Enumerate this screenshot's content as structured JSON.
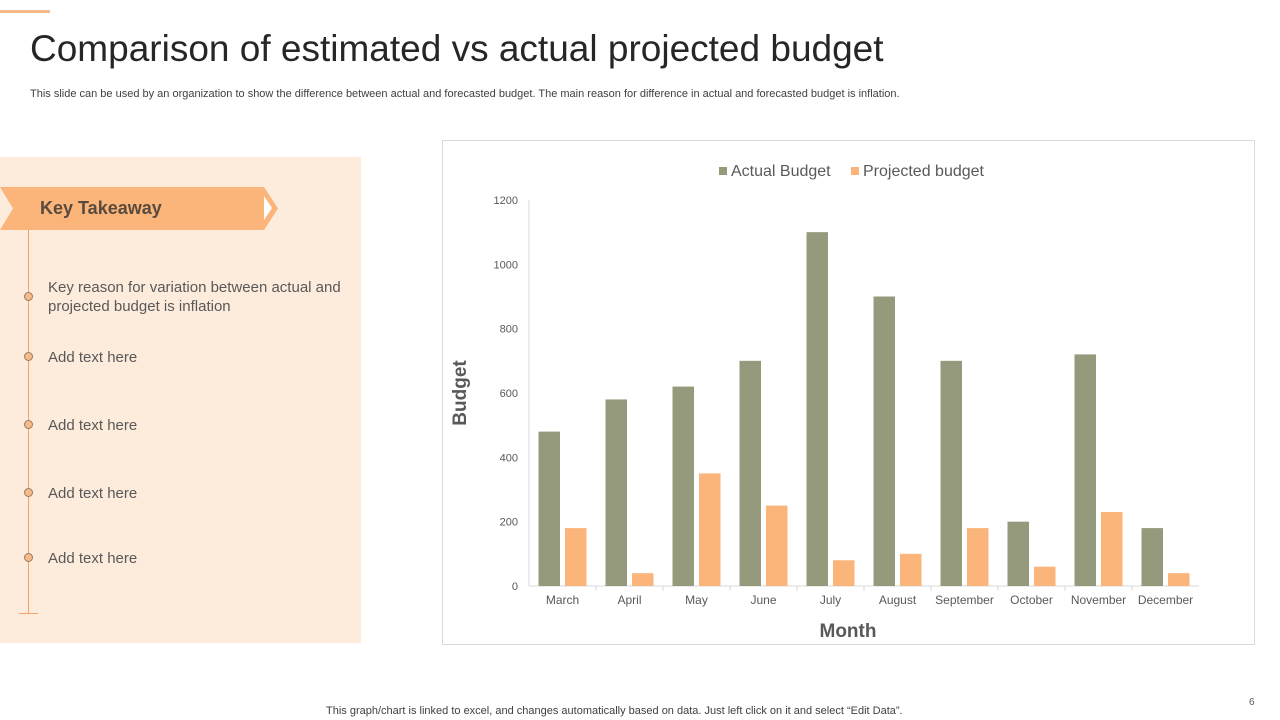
{
  "slide": {
    "title": "Comparison of estimated vs actual projected budget",
    "subtitle": "This slide can be used by an organization to show the difference between actual and forecasted budget. The main reason for difference in actual and forecasted budget is inflation.",
    "footer_note": "This graph/chart is linked to excel, and changes automatically based on data. Just left click on it and select “Edit Data”.",
    "page_number": "6"
  },
  "takeaway": {
    "heading": "Key Takeaway",
    "items": [
      "Key reason for variation between actual and projected budget is inflation",
      "Add text here",
      "Add text here",
      "Add text here",
      "Add text here"
    ]
  },
  "colors": {
    "actual": "#959a7c",
    "projected": "#fbb57a",
    "accent": "#f6b98a",
    "panel": "#fdebdc"
  },
  "chart_data": {
    "type": "bar",
    "categories": [
      "March",
      "April",
      "May",
      "June",
      "July",
      "August",
      "September",
      "October",
      "November",
      "December"
    ],
    "series": [
      {
        "name": "Actual Budget",
        "values": [
          480,
          580,
          620,
          700,
          1100,
          900,
          700,
          200,
          720,
          180
        ]
      },
      {
        "name": "Projected budget",
        "values": [
          180,
          40,
          350,
          250,
          80,
          100,
          180,
          60,
          230,
          40
        ]
      }
    ],
    "xlabel": "Month",
    "ylabel": "Budget",
    "ylim": [
      0,
      1200
    ],
    "yticks": [
      0,
      200,
      400,
      600,
      800,
      1000,
      1200
    ],
    "grid": false,
    "legend": "top-center"
  }
}
